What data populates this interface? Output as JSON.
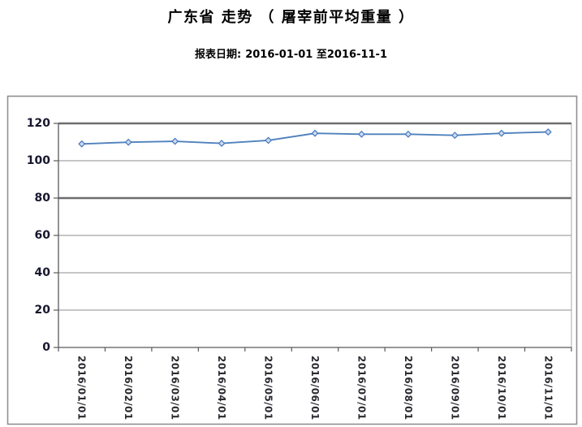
{
  "header": {
    "title": "广东省 走势 （ 屠宰前平均重量 ）",
    "subtitle": {
      "label": "报表日期:",
      "range": "2016-01-01 至2016-11-1"
    }
  },
  "chart_data": {
    "type": "line",
    "title": "广东省 走势 （ 屠宰前平均重量 ）",
    "xlabel": "",
    "ylabel": "",
    "categories": [
      "2016/01/01",
      "2016/02/01",
      "2016/03/01",
      "2016/04/01",
      "2016/05/01",
      "2016/06/01",
      "2016/07/01",
      "2016/08/01",
      "2016/09/01",
      "2016/10/01",
      "2016/11/01"
    ],
    "series": [
      {
        "name": "屠宰前平均重量",
        "values": [
          109.0,
          109.9,
          110.4,
          109.3,
          110.9,
          114.7,
          114.2,
          114.2,
          113.6,
          114.7,
          115.4
        ]
      }
    ],
    "ylim": [
      0,
      120
    ],
    "yticks": [
      0,
      20,
      40,
      60,
      80,
      100,
      120
    ],
    "emphasized_gridlines": [
      80,
      120
    ],
    "grid": true,
    "legend_position": "none",
    "x_label_rotation_deg": 90,
    "marker_shape": "diamond",
    "colors": {
      "line": "#4f81bd",
      "marker_stroke": "#4577bd",
      "marker_fill": "#ccdaf0",
      "gridline": "#8c8c8c",
      "gridline_emphasis": "#6d6d6d",
      "axis": "#595959",
      "plot_right_border": "#a8a8a8",
      "chart_border": "#8f8f8f",
      "axis_text": "#16162e",
      "x_label_text": "#2a2a30",
      "title_text": "#000000"
    }
  }
}
